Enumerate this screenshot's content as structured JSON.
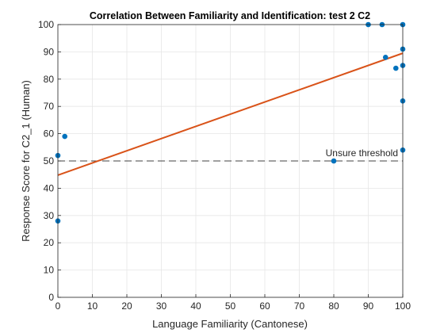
{
  "chart_data": {
    "type": "scatter",
    "title": "Correlation Between Familiarity and Identification: test 2 C2",
    "xlabel": "Language Familiarity (Cantonese)",
    "ylabel": "Response Score for C2_1 (Human)",
    "xlim": [
      0,
      100
    ],
    "ylim": [
      0,
      100
    ],
    "xticks": [
      0,
      10,
      20,
      30,
      40,
      50,
      60,
      70,
      80,
      90,
      100
    ],
    "yticks": [
      0,
      10,
      20,
      30,
      40,
      50,
      60,
      70,
      80,
      90,
      100
    ],
    "grid": true,
    "points": [
      {
        "x": 0,
        "y": 28
      },
      {
        "x": 0,
        "y": 52
      },
      {
        "x": 2,
        "y": 59
      },
      {
        "x": 80,
        "y": 50
      },
      {
        "x": 90,
        "y": 100
      },
      {
        "x": 94,
        "y": 100
      },
      {
        "x": 95,
        "y": 88
      },
      {
        "x": 98,
        "y": 84
      },
      {
        "x": 100,
        "y": 100
      },
      {
        "x": 100,
        "y": 91
      },
      {
        "x": 100,
        "y": 85
      },
      {
        "x": 100,
        "y": 72
      },
      {
        "x": 100,
        "y": 54
      }
    ],
    "fit_line": {
      "x": [
        0,
        100
      ],
      "y": [
        44.8,
        89.5
      ]
    },
    "threshold": {
      "y": 50,
      "label": "Unsure threshold"
    },
    "colors": {
      "points": "#0072BD",
      "fit_line": "#D95319",
      "threshold": "#404040",
      "grid": "#e6e6e6",
      "axis": "#262626"
    }
  }
}
